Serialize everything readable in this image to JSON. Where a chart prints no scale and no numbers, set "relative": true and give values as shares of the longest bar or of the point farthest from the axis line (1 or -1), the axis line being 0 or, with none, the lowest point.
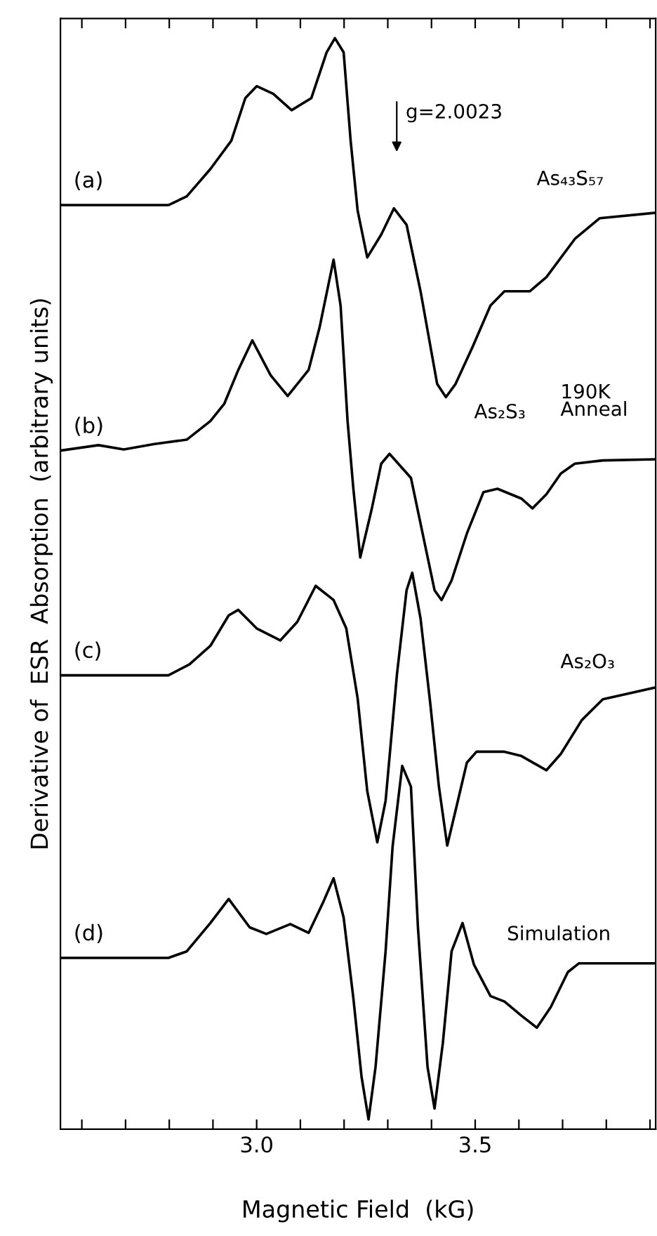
{
  "chart_data": {
    "type": "line",
    "relative": true,
    "xlabel": "Magnetic Field  (kG)",
    "ylabel": "Derivative of  ESR  Absorption  (arbitrary units)",
    "xlim": [
      2.551,
      3.913
    ],
    "xticks": [
      {
        "value": 2.6,
        "label": null
      },
      {
        "value": 2.7,
        "label": null
      },
      {
        "value": 2.8,
        "label": null
      },
      {
        "value": 2.9,
        "label": null
      },
      {
        "value": 3.0,
        "label": "3.0"
      },
      {
        "value": 3.1,
        "label": null
      },
      {
        "value": 3.2,
        "label": null
      },
      {
        "value": 3.3,
        "label": null
      },
      {
        "value": 3.4,
        "label": null
      },
      {
        "value": 3.5,
        "label": "3.5"
      },
      {
        "value": 3.6,
        "label": null
      },
      {
        "value": 3.7,
        "label": null
      },
      {
        "value": 3.8,
        "label": null
      },
      {
        "value": 3.9,
        "label": null
      }
    ],
    "tick_labels": "x",
    "grid": false,
    "legend": false,
    "marker": "none",
    "line_style": "solid",
    "series": [
      {
        "name": "(a)",
        "color": "#000000",
        "x": [
          2.551,
          2.798,
          2.84,
          2.894,
          2.942,
          2.974,
          3.0,
          3.038,
          3.08,
          3.125,
          3.16,
          3.179,
          3.199,
          3.215,
          3.231,
          3.253,
          3.285,
          3.314,
          3.343,
          3.375,
          3.413,
          3.433,
          3.455,
          3.494,
          3.535,
          3.567,
          3.625,
          3.663,
          3.728,
          3.785,
          3.913
        ],
        "values": [
          0.847,
          0.847,
          0.855,
          0.88,
          0.906,
          0.945,
          0.956,
          0.949,
          0.934,
          0.945,
          0.987,
          1.0,
          0.987,
          0.906,
          0.842,
          0.799,
          0.82,
          0.844,
          0.829,
          0.768,
          0.683,
          0.671,
          0.683,
          0.717,
          0.755,
          0.768,
          0.768,
          0.781,
          0.816,
          0.835,
          0.84
        ]
      },
      {
        "name": "(b)",
        "color": "#000000",
        "x": [
          2.551,
          2.638,
          2.696,
          2.766,
          2.84,
          2.894,
          2.926,
          2.958,
          2.99,
          3.032,
          3.071,
          3.119,
          3.144,
          3.176,
          3.192,
          3.208,
          3.221,
          3.237,
          3.263,
          3.285,
          3.304,
          3.353,
          3.375,
          3.407,
          3.423,
          3.446,
          3.481,
          3.519,
          3.551,
          3.606,
          3.631,
          3.663,
          3.696,
          3.728,
          3.792,
          3.913
        ],
        "values": [
          0.622,
          0.627,
          0.623,
          0.628,
          0.632,
          0.649,
          0.665,
          0.696,
          0.723,
          0.691,
          0.672,
          0.696,
          0.735,
          0.797,
          0.755,
          0.649,
          0.588,
          0.524,
          0.568,
          0.61,
          0.619,
          0.597,
          0.555,
          0.494,
          0.485,
          0.503,
          0.546,
          0.584,
          0.587,
          0.578,
          0.569,
          0.582,
          0.601,
          0.61,
          0.613,
          0.614
        ]
      },
      {
        "name": "(c)",
        "color": "#000000",
        "x": [
          2.551,
          2.798,
          2.846,
          2.894,
          2.936,
          2.958,
          3.0,
          3.054,
          3.093,
          3.135,
          3.176,
          3.205,
          3.231,
          3.253,
          3.276,
          3.295,
          3.321,
          3.343,
          3.356,
          3.375,
          3.397,
          3.417,
          3.436,
          3.458,
          3.481,
          3.503,
          3.567,
          3.606,
          3.663,
          3.696,
          3.744,
          3.792,
          3.913
        ],
        "values": [
          0.416,
          0.416,
          0.426,
          0.443,
          0.471,
          0.476,
          0.459,
          0.448,
          0.465,
          0.498,
          0.485,
          0.459,
          0.395,
          0.31,
          0.263,
          0.301,
          0.417,
          0.494,
          0.51,
          0.468,
          0.391,
          0.314,
          0.26,
          0.297,
          0.336,
          0.346,
          0.346,
          0.342,
          0.329,
          0.344,
          0.375,
          0.394,
          0.405
        ]
      },
      {
        "name": "(d)",
        "color": "#000000",
        "x": [
          2.551,
          2.798,
          2.84,
          2.894,
          2.936,
          2.984,
          3.022,
          3.077,
          3.119,
          3.151,
          3.176,
          3.199,
          3.221,
          3.24,
          3.256,
          3.272,
          3.295,
          3.311,
          3.333,
          3.353,
          3.369,
          3.391,
          3.407,
          3.426,
          3.446,
          3.471,
          3.497,
          3.535,
          3.567,
          3.606,
          3.641,
          3.673,
          3.712,
          3.737,
          3.913
        ],
        "values": [
          0.157,
          0.157,
          0.163,
          0.189,
          0.211,
          0.185,
          0.179,
          0.188,
          0.18,
          0.207,
          0.23,
          0.194,
          0.121,
          0.048,
          0.009,
          0.057,
          0.163,
          0.259,
          0.333,
          0.314,
          0.185,
          0.057,
          0.019,
          0.079,
          0.163,
          0.189,
          0.151,
          0.122,
          0.117,
          0.104,
          0.093,
          0.112,
          0.144,
          0.152,
          0.152
        ]
      }
    ],
    "annotations": [
      "g=2.0023",
      "As₄₃S₅₇",
      "As₂S₃",
      "190K\nAnneal",
      "As₂O₃",
      "Simulation"
    ]
  }
}
